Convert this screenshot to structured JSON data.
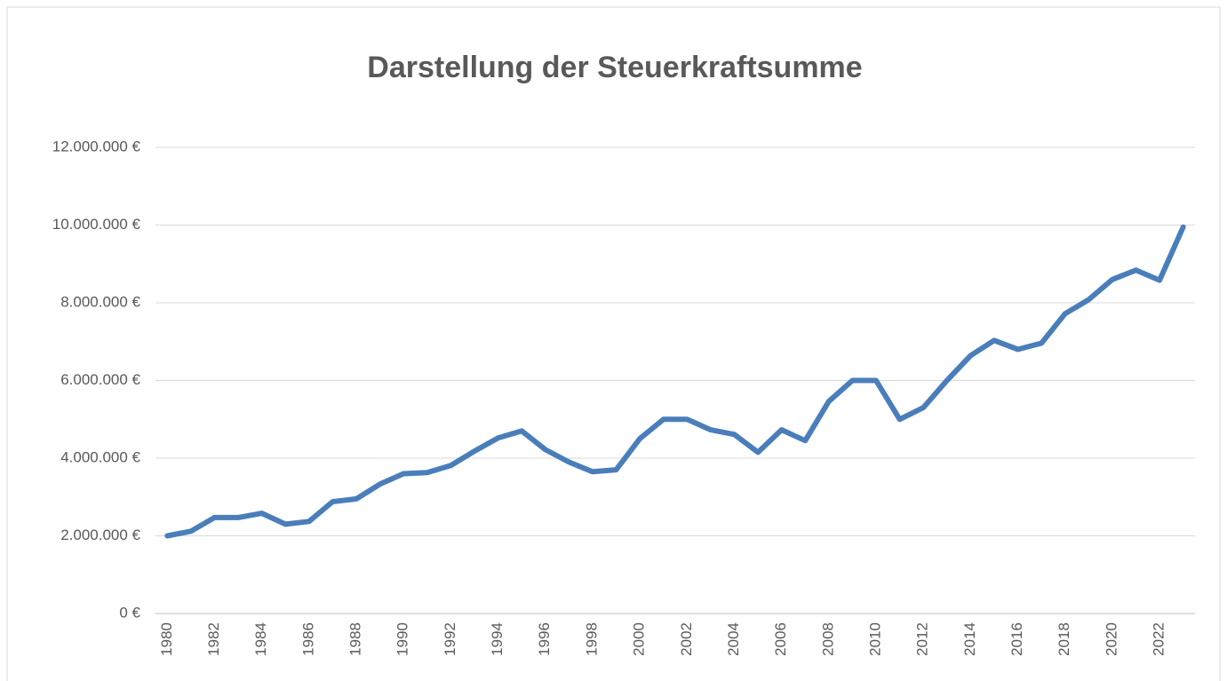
{
  "chart_data": {
    "type": "line",
    "title": "Darstellung der Steuerkraftsumme",
    "categories": [
      "1980",
      null,
      "1982",
      null,
      "1984",
      null,
      "1986",
      null,
      "1988",
      null,
      "1990",
      null,
      "1992",
      null,
      "1994",
      null,
      "1996",
      null,
      "1998",
      null,
      "2000",
      null,
      "2002",
      null,
      "2004",
      null,
      "2006",
      null,
      "2008",
      null,
      "2010",
      null,
      "2012",
      null,
      "2014",
      null,
      "2016",
      null,
      "2018",
      null,
      "2020",
      null,
      "2022",
      null
    ],
    "series": [
      {
        "name": "Steuerkraftsumme",
        "color": "#4a7ebb",
        "values": [
          2000000,
          2120000,
          2470000,
          2470000,
          2580000,
          2300000,
          2370000,
          2880000,
          2950000,
          3330000,
          3600000,
          3630000,
          3810000,
          4180000,
          4520000,
          4700000,
          4220000,
          3900000,
          3650000,
          3700000,
          4500000,
          5000000,
          5000000,
          4730000,
          4610000,
          4150000,
          4730000,
          4450000,
          5460000,
          6000000,
          6000000,
          5000000,
          5300000,
          6000000,
          6640000,
          7030000,
          6800000,
          6960000,
          7720000,
          8080000,
          8600000,
          8840000,
          8580000,
          9950000
        ]
      }
    ],
    "ylim": [
      0,
      12000000
    ],
    "yticks": [
      {
        "value": 0,
        "label": "0 €"
      },
      {
        "value": 2000000,
        "label": "2.000.000 €"
      },
      {
        "value": 4000000,
        "label": "4.000.000 €"
      },
      {
        "value": 6000000,
        "label": "6.000.000 €"
      },
      {
        "value": 8000000,
        "label": "8.000.000 €"
      },
      {
        "value": 10000000,
        "label": "10.000.000 €"
      },
      {
        "value": 12000000,
        "label": "12.000.000 €"
      }
    ],
    "grid": true
  }
}
